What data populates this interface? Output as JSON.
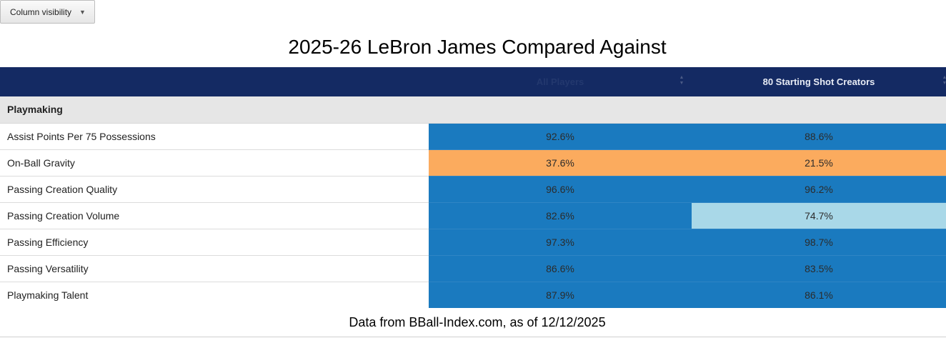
{
  "toolbar": {
    "column_visibility_label": "Column visibility",
    "caret": "▼"
  },
  "title": "2025-26 LeBron James Compared Against",
  "table": {
    "columns": [
      {
        "label": ""
      },
      {
        "label": "All Players"
      },
      {
        "label": "80 Starting Shot Creators"
      }
    ],
    "section": "Playmaking",
    "rows": [
      {
        "label": "Assist Points Per 75 Possessions",
        "values": [
          "92.6%",
          "88.6%"
        ],
        "colors": [
          "#1a7abf",
          "#1a7abf"
        ]
      },
      {
        "label": "On-Ball Gravity",
        "values": [
          "37.6%",
          "21.5%"
        ],
        "colors": [
          "#fbab5e",
          "#fbab5e"
        ]
      },
      {
        "label": "Passing Creation Quality",
        "values": [
          "96.6%",
          "96.2%"
        ],
        "colors": [
          "#1a7abf",
          "#1a7abf"
        ]
      },
      {
        "label": "Passing Creation Volume",
        "values": [
          "82.6%",
          "74.7%"
        ],
        "colors": [
          "#1a7abf",
          "#a9d8e8"
        ]
      },
      {
        "label": "Passing Efficiency",
        "values": [
          "97.3%",
          "98.7%"
        ],
        "colors": [
          "#1a7abf",
          "#1a7abf"
        ]
      },
      {
        "label": "Passing Versatility",
        "values": [
          "86.6%",
          "83.5%"
        ],
        "colors": [
          "#1a7abf",
          "#1a7abf"
        ]
      },
      {
        "label": "Playmaking Talent",
        "values": [
          "87.9%",
          "86.1%"
        ],
        "colors": [
          "#1a7abf",
          "#1a7abf"
        ]
      }
    ]
  },
  "footer": "Data from BBall-Index.com, as of 12/12/2025",
  "colors": {
    "header_bg": "#142a63",
    "section_bg": "#e6e6e6",
    "high_blue": "#1a7abf",
    "mid_lightblue": "#a9d8e8",
    "low_orange": "#fbab5e"
  }
}
